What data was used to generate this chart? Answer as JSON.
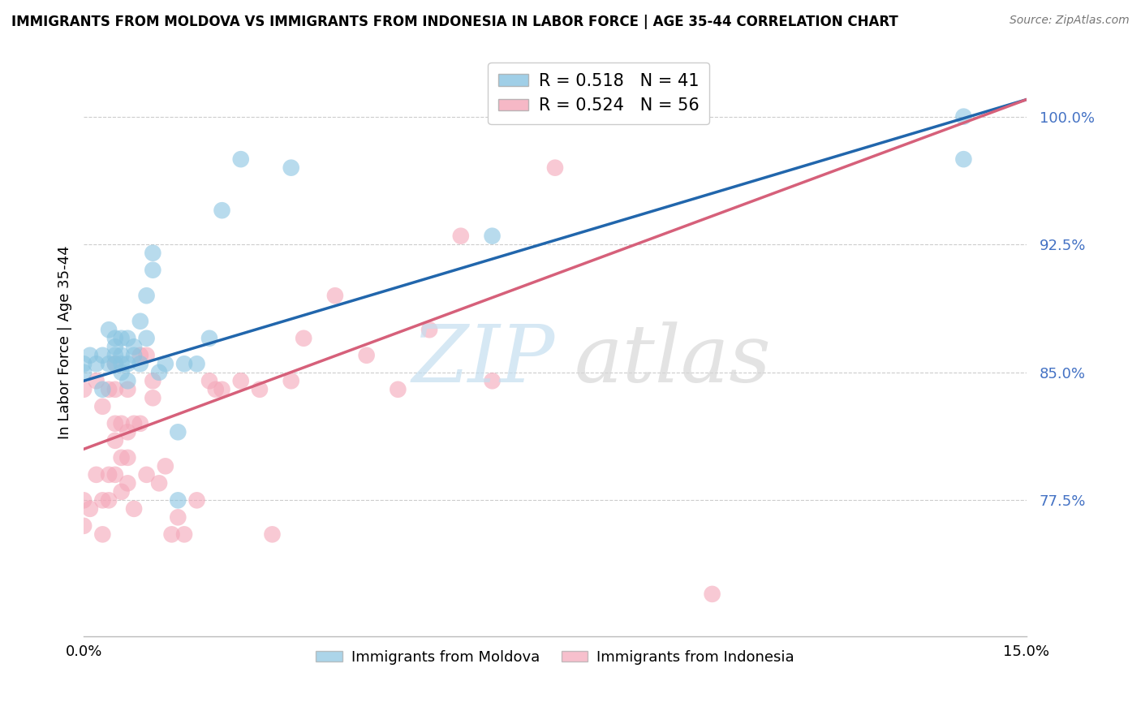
{
  "title": "IMMIGRANTS FROM MOLDOVA VS IMMIGRANTS FROM INDONESIA IN LABOR FORCE | AGE 35-44 CORRELATION CHART",
  "source": "Source: ZipAtlas.com",
  "ylabel_label": "In Labor Force | Age 35-44",
  "moldova_color": "#89c4e1",
  "indonesia_color": "#f4a6b8",
  "moldova_line_color": "#2166ac",
  "indonesia_line_color": "#d6607a",
  "xlim": [
    0.0,
    0.15
  ],
  "ylim": [
    0.695,
    1.04
  ],
  "yticks": [
    0.775,
    0.85,
    0.925,
    1.0
  ],
  "ytick_labels": [
    "77.5%",
    "85.0%",
    "92.5%",
    "100.0%"
  ],
  "xticks": [
    0.0,
    0.15
  ],
  "xtick_labels": [
    "0.0%",
    "15.0%"
  ],
  "moldova_R": "0.518",
  "moldova_N": "41",
  "indonesia_R": "0.524",
  "indonesia_N": "56",
  "moldova_x": [
    0.0,
    0.0,
    0.001,
    0.002,
    0.003,
    0.003,
    0.004,
    0.004,
    0.005,
    0.005,
    0.005,
    0.005,
    0.006,
    0.006,
    0.006,
    0.006,
    0.007,
    0.007,
    0.007,
    0.008,
    0.008,
    0.009,
    0.009,
    0.01,
    0.01,
    0.011,
    0.011,
    0.012,
    0.013,
    0.015,
    0.015,
    0.016,
    0.018,
    0.02,
    0.022,
    0.025,
    0.033,
    0.065,
    0.08,
    0.14,
    0.14
  ],
  "moldova_y": [
    0.85,
    0.855,
    0.86,
    0.855,
    0.84,
    0.86,
    0.855,
    0.875,
    0.855,
    0.86,
    0.865,
    0.87,
    0.85,
    0.855,
    0.86,
    0.87,
    0.845,
    0.855,
    0.87,
    0.86,
    0.865,
    0.855,
    0.88,
    0.87,
    0.895,
    0.91,
    0.92,
    0.85,
    0.855,
    0.775,
    0.815,
    0.855,
    0.855,
    0.87,
    0.945,
    0.975,
    0.97,
    0.93,
    1.0,
    1.0,
    0.975
  ],
  "indonesia_x": [
    0.0,
    0.0,
    0.0,
    0.001,
    0.002,
    0.002,
    0.003,
    0.003,
    0.003,
    0.004,
    0.004,
    0.004,
    0.005,
    0.005,
    0.005,
    0.005,
    0.005,
    0.006,
    0.006,
    0.006,
    0.007,
    0.007,
    0.007,
    0.007,
    0.008,
    0.008,
    0.009,
    0.009,
    0.01,
    0.01,
    0.011,
    0.011,
    0.012,
    0.013,
    0.014,
    0.015,
    0.016,
    0.018,
    0.02,
    0.021,
    0.022,
    0.025,
    0.028,
    0.03,
    0.033,
    0.035,
    0.04,
    0.045,
    0.05,
    0.055,
    0.06,
    0.065,
    0.075,
    0.09,
    0.095,
    0.1
  ],
  "indonesia_y": [
    0.76,
    0.775,
    0.84,
    0.77,
    0.79,
    0.845,
    0.755,
    0.775,
    0.83,
    0.775,
    0.79,
    0.84,
    0.79,
    0.81,
    0.82,
    0.84,
    0.855,
    0.78,
    0.8,
    0.82,
    0.785,
    0.8,
    0.815,
    0.84,
    0.77,
    0.82,
    0.82,
    0.86,
    0.79,
    0.86,
    0.835,
    0.845,
    0.785,
    0.795,
    0.755,
    0.765,
    0.755,
    0.775,
    0.845,
    0.84,
    0.84,
    0.845,
    0.84,
    0.755,
    0.845,
    0.87,
    0.895,
    0.86,
    0.84,
    0.875,
    0.93,
    0.845,
    0.97,
    1.0,
    1.0,
    0.72
  ],
  "moldova_line_x0": 0.0,
  "moldova_line_y0": 0.845,
  "moldova_line_x1": 0.15,
  "moldova_line_y1": 1.01,
  "indonesia_line_x0": 0.0,
  "indonesia_line_y0": 0.805,
  "indonesia_line_x1": 0.15,
  "indonesia_line_y1": 1.01
}
